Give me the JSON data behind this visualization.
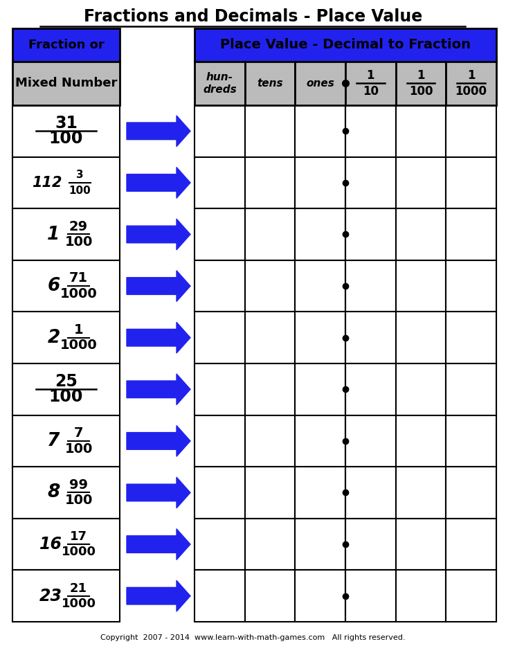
{
  "title": "Fractions and Decimals - Place Value",
  "blue_color": "#2222EE",
  "gray_color": "#BBBBBB",
  "white_color": "#FFFFFF",
  "black_color": "#000000",
  "fractions": [
    {
      "whole": "",
      "num": "31",
      "den": "100"
    },
    {
      "whole": "112",
      "num": "3",
      "den": "100"
    },
    {
      "whole": "1",
      "num": "29",
      "den": "100"
    },
    {
      "whole": "6",
      "num": "71",
      "den": "1000"
    },
    {
      "whole": "2",
      "num": "1",
      "den": "1000"
    },
    {
      "whole": "",
      "num": "25",
      "den": "100"
    },
    {
      "whole": "7",
      "num": "7",
      "den": "100"
    },
    {
      "whole": "8",
      "num": "99",
      "den": "100"
    },
    {
      "whole": "16",
      "num": "17",
      "den": "1000"
    },
    {
      "whole": "23",
      "num": "21",
      "den": "1000"
    }
  ],
  "col_labels": [
    "hun-\ndreds",
    "tens",
    "ones",
    "1\n10",
    "1\n100",
    "1\n1000"
  ],
  "copyright": "Copyright  2007 - 2014  www.learn-with-math-games.com   All rights reserved.",
  "left_col_header": "Fraction or",
  "left_col_subheader": "Mixed Number",
  "right_header": "Place Value - Decimal to Fraction"
}
